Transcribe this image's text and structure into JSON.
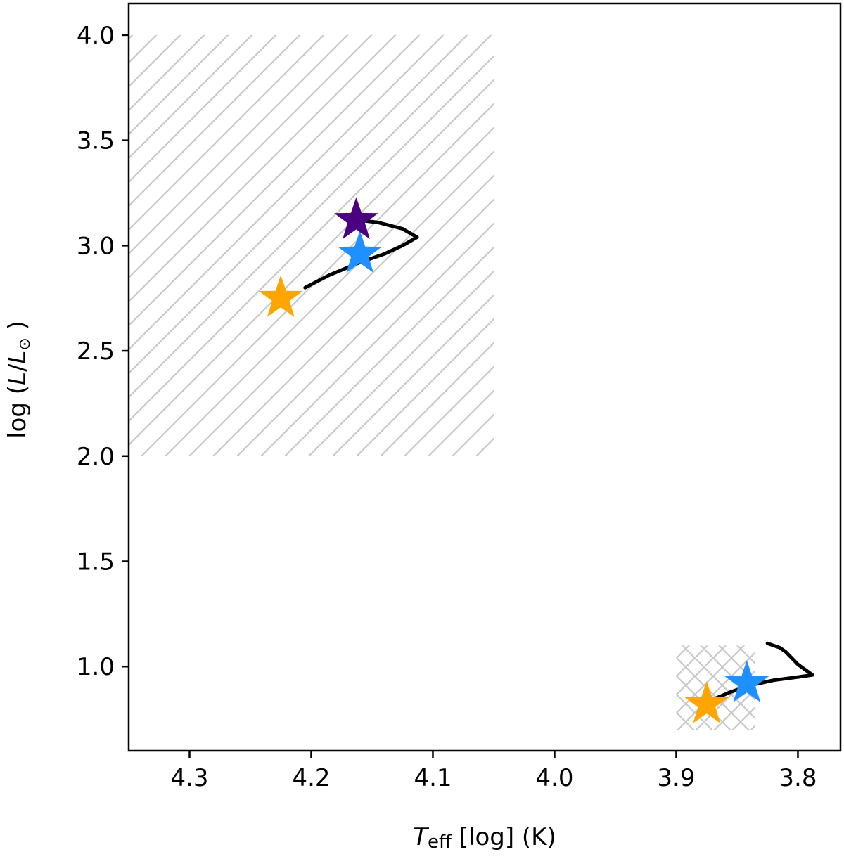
{
  "chart_data": {
    "type": "scatter",
    "title": "",
    "xlabel": {
      "main": "T",
      "sub": "eff",
      "rest": " [log] (K)"
    },
    "ylabel": {
      "pre": "log (",
      "var": "L",
      "slash": "/",
      "var2": "L",
      "sub": "⊙",
      "post": " )"
    },
    "xlim": [
      4.35,
      3.765
    ],
    "ylim": [
      0.6,
      4.15
    ],
    "x_inverted": true,
    "xticks": [
      4.3,
      4.2,
      4.1,
      4.0,
      3.9,
      3.8
    ],
    "xtick_labels": [
      "4.3",
      "4.2",
      "4.1",
      "4.0",
      "3.9",
      "3.8"
    ],
    "yticks": [
      1.0,
      1.5,
      2.0,
      2.5,
      3.0,
      3.5,
      4.0
    ],
    "ytick_labels": [
      "1.0",
      "1.5",
      "2.0",
      "2.5",
      "3.0",
      "3.5",
      "4.0"
    ],
    "grid": false,
    "regions": [
      {
        "name": "hot-region",
        "hatch": "diagonal",
        "x": [
          4.35,
          4.05
        ],
        "y": [
          2.0,
          4.0
        ],
        "color": "#c8c8c8"
      },
      {
        "name": "cool-region",
        "hatch": "cross",
        "x": [
          3.9,
          3.835
        ],
        "y": [
          0.7,
          1.1
        ],
        "color": "#c8c8c8"
      }
    ],
    "tracks": [
      {
        "color": "#000000",
        "points": [
          [
            4.205,
            2.8
          ],
          [
            4.185,
            2.86
          ],
          [
            4.16,
            2.92
          ],
          [
            4.14,
            2.96
          ],
          [
            4.125,
            3.0
          ],
          [
            4.113,
            3.04
          ],
          [
            4.125,
            3.08
          ],
          [
            4.145,
            3.11
          ],
          [
            4.16,
            3.12
          ]
        ]
      },
      {
        "color": "#000000",
        "points": [
          [
            3.867,
            0.85
          ],
          [
            3.855,
            0.88
          ],
          [
            3.84,
            0.91
          ],
          [
            3.82,
            0.935
          ],
          [
            3.8,
            0.95
          ],
          [
            3.788,
            0.96
          ],
          [
            3.8,
            1.01
          ],
          [
            3.81,
            1.07
          ],
          [
            3.815,
            1.09
          ],
          [
            3.825,
            1.11
          ]
        ]
      }
    ],
    "stars": [
      {
        "x": 4.225,
        "y": 2.75,
        "color": "#ffa500"
      },
      {
        "x": 4.16,
        "y": 2.96,
        "color": "#1e90ff"
      },
      {
        "x": 4.163,
        "y": 3.12,
        "color": "#4b0082"
      },
      {
        "x": 3.875,
        "y": 0.82,
        "color": "#ffa500"
      },
      {
        "x": 3.842,
        "y": 0.92,
        "color": "#1e90ff"
      }
    ]
  }
}
